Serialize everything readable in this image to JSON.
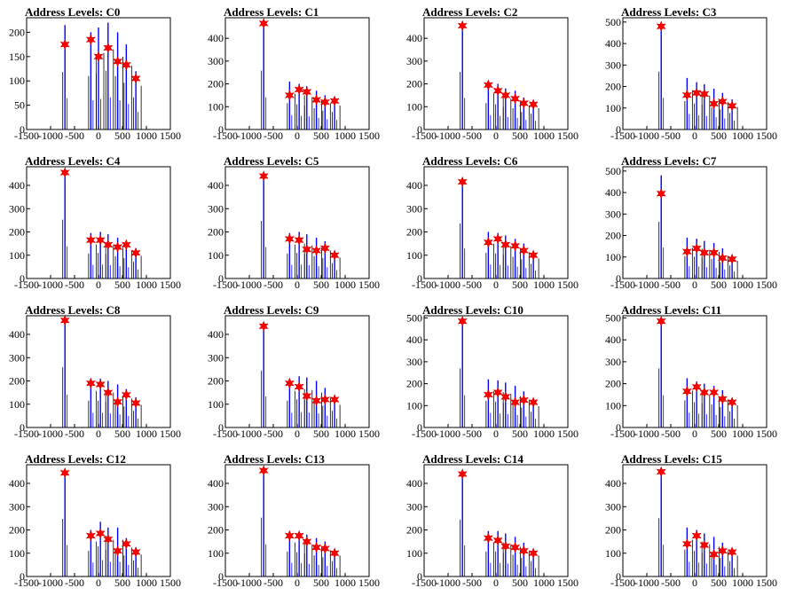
{
  "figure": {
    "xticks": [
      "-1500",
      "-1000",
      "-500",
      "0",
      "500",
      "1000",
      "1500"
    ]
  },
  "colors": {
    "histogram_line": "#0000ff",
    "secondary_line": "#000000",
    "peak_marker": "#ff0000",
    "marker_outline": "#cc0000",
    "axis": "#000000"
  },
  "chart_data": [
    {
      "type": "bar",
      "title": "Address Levels: C0",
      "xlim": [
        -1500,
        1500
      ],
      "ylim": [
        0,
        230
      ],
      "yticks": [
        "0",
        "50",
        "100",
        "150",
        "200"
      ],
      "peaks": [
        {
          "x": -700,
          "y": 175
        },
        {
          "x": -160,
          "y": 185
        },
        {
          "x": 0,
          "y": 150
        },
        {
          "x": 200,
          "y": 168
        },
        {
          "x": 400,
          "y": 140
        },
        {
          "x": 580,
          "y": 133
        },
        {
          "x": 780,
          "y": 105
        }
      ],
      "spikes": [
        {
          "x": -700,
          "y": 215
        },
        {
          "x": -160,
          "y": 200
        },
        {
          "x": 0,
          "y": 210
        },
        {
          "x": 200,
          "y": 220
        },
        {
          "x": 400,
          "y": 200
        },
        {
          "x": 580,
          "y": 175
        },
        {
          "x": 780,
          "y": 120
        }
      ]
    },
    {
      "type": "bar",
      "title": "Address Levels: C1",
      "xlim": [
        -1500,
        1500
      ],
      "ylim": [
        0,
        490
      ],
      "yticks": [
        "0",
        "100",
        "200",
        "300",
        "400"
      ],
      "peaks": [
        {
          "x": -700,
          "y": 465
        },
        {
          "x": -160,
          "y": 150
        },
        {
          "x": 40,
          "y": 175
        },
        {
          "x": 200,
          "y": 165
        },
        {
          "x": 400,
          "y": 130
        },
        {
          "x": 580,
          "y": 120
        },
        {
          "x": 780,
          "y": 125
        }
      ],
      "spikes": [
        {
          "x": -700,
          "y": 470
        },
        {
          "x": -160,
          "y": 210
        },
        {
          "x": 40,
          "y": 200
        },
        {
          "x": 200,
          "y": 190
        },
        {
          "x": 400,
          "y": 170
        },
        {
          "x": 580,
          "y": 150
        },
        {
          "x": 780,
          "y": 140
        }
      ]
    },
    {
      "type": "bar",
      "title": "Address Levels: C2",
      "xlim": [
        -1500,
        1500
      ],
      "ylim": [
        0,
        490
      ],
      "yticks": [
        "0",
        "100",
        "200",
        "300",
        "400"
      ],
      "peaks": [
        {
          "x": -700,
          "y": 455
        },
        {
          "x": -160,
          "y": 195
        },
        {
          "x": 40,
          "y": 170
        },
        {
          "x": 200,
          "y": 150
        },
        {
          "x": 400,
          "y": 135
        },
        {
          "x": 580,
          "y": 115
        },
        {
          "x": 780,
          "y": 110
        }
      ],
      "spikes": [
        {
          "x": -700,
          "y": 460
        },
        {
          "x": -160,
          "y": 210
        },
        {
          "x": 40,
          "y": 200
        },
        {
          "x": 200,
          "y": 180
        },
        {
          "x": 400,
          "y": 170
        },
        {
          "x": 580,
          "y": 140
        },
        {
          "x": 780,
          "y": 125
        }
      ]
    },
    {
      "type": "bar",
      "title": "Address Levels: C3",
      "xlim": [
        -1500,
        1500
      ],
      "ylim": [
        0,
        520
      ],
      "yticks": [
        "0",
        "100",
        "200",
        "300",
        "400",
        "500"
      ],
      "peaks": [
        {
          "x": -700,
          "y": 480
        },
        {
          "x": -160,
          "y": 160
        },
        {
          "x": 40,
          "y": 170
        },
        {
          "x": 200,
          "y": 165
        },
        {
          "x": 400,
          "y": 120
        },
        {
          "x": 580,
          "y": 130
        },
        {
          "x": 780,
          "y": 110
        }
      ],
      "spikes": [
        {
          "x": -700,
          "y": 490
        },
        {
          "x": -160,
          "y": 240
        },
        {
          "x": 40,
          "y": 220
        },
        {
          "x": 200,
          "y": 210
        },
        {
          "x": 400,
          "y": 190
        },
        {
          "x": 580,
          "y": 170
        },
        {
          "x": 780,
          "y": 140
        }
      ]
    },
    {
      "type": "bar",
      "title": "Address Levels: C4",
      "xlim": [
        -1500,
        1500
      ],
      "ylim": [
        0,
        480
      ],
      "yticks": [
        "0",
        "100",
        "200",
        "300",
        "400"
      ],
      "peaks": [
        {
          "x": -700,
          "y": 455
        },
        {
          "x": -160,
          "y": 165
        },
        {
          "x": 40,
          "y": 165
        },
        {
          "x": 200,
          "y": 145
        },
        {
          "x": 400,
          "y": 135
        },
        {
          "x": 580,
          "y": 145
        },
        {
          "x": 780,
          "y": 110
        }
      ],
      "spikes": [
        {
          "x": -700,
          "y": 460
        },
        {
          "x": -160,
          "y": 195
        },
        {
          "x": 40,
          "y": 200
        },
        {
          "x": 200,
          "y": 190
        },
        {
          "x": 400,
          "y": 175
        },
        {
          "x": 580,
          "y": 160
        },
        {
          "x": 780,
          "y": 130
        }
      ]
    },
    {
      "type": "bar",
      "title": "Address Levels: C5",
      "xlim": [
        -1500,
        1500
      ],
      "ylim": [
        0,
        480
      ],
      "yticks": [
        "0",
        "100",
        "200",
        "300",
        "400"
      ],
      "peaks": [
        {
          "x": -700,
          "y": 440
        },
        {
          "x": -160,
          "y": 170
        },
        {
          "x": 40,
          "y": 165
        },
        {
          "x": 200,
          "y": 125
        },
        {
          "x": 400,
          "y": 120
        },
        {
          "x": 580,
          "y": 130
        },
        {
          "x": 780,
          "y": 100
        }
      ],
      "spikes": [
        {
          "x": -700,
          "y": 450
        },
        {
          "x": -160,
          "y": 195
        },
        {
          "x": 40,
          "y": 200
        },
        {
          "x": 200,
          "y": 190
        },
        {
          "x": 400,
          "y": 175
        },
        {
          "x": 580,
          "y": 160
        },
        {
          "x": 780,
          "y": 120
        }
      ]
    },
    {
      "type": "bar",
      "title": "Address Levels: C6",
      "xlim": [
        -1500,
        1500
      ],
      "ylim": [
        0,
        480
      ],
      "yticks": [
        "0",
        "100",
        "200",
        "300",
        "400"
      ],
      "peaks": [
        {
          "x": -700,
          "y": 415
        },
        {
          "x": -160,
          "y": 155
        },
        {
          "x": 40,
          "y": 170
        },
        {
          "x": 200,
          "y": 145
        },
        {
          "x": 400,
          "y": 140
        },
        {
          "x": 580,
          "y": 120
        },
        {
          "x": 780,
          "y": 100
        }
      ],
      "spikes": [
        {
          "x": -700,
          "y": 430
        },
        {
          "x": -160,
          "y": 200
        },
        {
          "x": 40,
          "y": 195
        },
        {
          "x": 200,
          "y": 185
        },
        {
          "x": 400,
          "y": 170
        },
        {
          "x": 580,
          "y": 150
        },
        {
          "x": 780,
          "y": 115
        }
      ]
    },
    {
      "type": "bar",
      "title": "Address Levels: C7",
      "xlim": [
        -1500,
        1500
      ],
      "ylim": [
        0,
        520
      ],
      "yticks": [
        "0",
        "100",
        "200",
        "300",
        "400",
        "500"
      ],
      "peaks": [
        {
          "x": -700,
          "y": 395
        },
        {
          "x": -160,
          "y": 125
        },
        {
          "x": 40,
          "y": 140
        },
        {
          "x": 200,
          "y": 120
        },
        {
          "x": 400,
          "y": 120
        },
        {
          "x": 580,
          "y": 95
        },
        {
          "x": 780,
          "y": 90
        }
      ],
      "spikes": [
        {
          "x": -700,
          "y": 480
        },
        {
          "x": -160,
          "y": 190
        },
        {
          "x": 40,
          "y": 185
        },
        {
          "x": 200,
          "y": 175
        },
        {
          "x": 400,
          "y": 165
        },
        {
          "x": 580,
          "y": 140
        },
        {
          "x": 780,
          "y": 110
        }
      ]
    },
    {
      "type": "bar",
      "title": "Address Levels: C8",
      "xlim": [
        -1500,
        1500
      ],
      "ylim": [
        0,
        480
      ],
      "yticks": [
        "0",
        "100",
        "200",
        "300",
        "400"
      ],
      "peaks": [
        {
          "x": -700,
          "y": 460
        },
        {
          "x": -160,
          "y": 190
        },
        {
          "x": 40,
          "y": 185
        },
        {
          "x": 200,
          "y": 150
        },
        {
          "x": 400,
          "y": 110
        },
        {
          "x": 580,
          "y": 140
        },
        {
          "x": 780,
          "y": 105
        }
      ],
      "spikes": [
        {
          "x": -700,
          "y": 470
        },
        {
          "x": -160,
          "y": 210
        },
        {
          "x": 40,
          "y": 210
        },
        {
          "x": 200,
          "y": 200
        },
        {
          "x": 400,
          "y": 185
        },
        {
          "x": 580,
          "y": 165
        },
        {
          "x": 780,
          "y": 130
        }
      ]
    },
    {
      "type": "bar",
      "title": "Address Levels: C9",
      "xlim": [
        -1500,
        1500
      ],
      "ylim": [
        0,
        480
      ],
      "yticks": [
        "0",
        "100",
        "200",
        "300",
        "400"
      ],
      "peaks": [
        {
          "x": -700,
          "y": 435
        },
        {
          "x": -160,
          "y": 190
        },
        {
          "x": 40,
          "y": 175
        },
        {
          "x": 200,
          "y": 135
        },
        {
          "x": 400,
          "y": 115
        },
        {
          "x": 580,
          "y": 120
        },
        {
          "x": 780,
          "y": 120
        }
      ],
      "spikes": [
        {
          "x": -700,
          "y": 445
        },
        {
          "x": -160,
          "y": 210
        },
        {
          "x": 40,
          "y": 220
        },
        {
          "x": 200,
          "y": 215
        },
        {
          "x": 400,
          "y": 200
        },
        {
          "x": 580,
          "y": 170
        },
        {
          "x": 780,
          "y": 130
        }
      ]
    },
    {
      "type": "bar",
      "title": "Address Levels: C10",
      "xlim": [
        -1500,
        1500
      ],
      "ylim": [
        0,
        510
      ],
      "yticks": [
        "0",
        "100",
        "200",
        "300",
        "400",
        "500"
      ],
      "peaks": [
        {
          "x": -700,
          "y": 485
        },
        {
          "x": -160,
          "y": 150
        },
        {
          "x": 40,
          "y": 160
        },
        {
          "x": 200,
          "y": 140
        },
        {
          "x": 400,
          "y": 115
        },
        {
          "x": 580,
          "y": 125
        },
        {
          "x": 780,
          "y": 115
        }
      ],
      "spikes": [
        {
          "x": -700,
          "y": 490
        },
        {
          "x": -160,
          "y": 220
        },
        {
          "x": 40,
          "y": 215
        },
        {
          "x": 200,
          "y": 205
        },
        {
          "x": 400,
          "y": 190
        },
        {
          "x": 580,
          "y": 165
        },
        {
          "x": 780,
          "y": 130
        }
      ]
    },
    {
      "type": "bar",
      "title": "Address Levels: C11",
      "xlim": [
        -1500,
        1500
      ],
      "ylim": [
        0,
        510
      ],
      "yticks": [
        "0",
        "100",
        "200",
        "300",
        "400",
        "500"
      ],
      "peaks": [
        {
          "x": -700,
          "y": 485
        },
        {
          "x": -160,
          "y": 165
        },
        {
          "x": 40,
          "y": 185
        },
        {
          "x": 200,
          "y": 160
        },
        {
          "x": 400,
          "y": 160
        },
        {
          "x": 580,
          "y": 130
        },
        {
          "x": 780,
          "y": 115
        }
      ],
      "spikes": [
        {
          "x": -700,
          "y": 490
        },
        {
          "x": -160,
          "y": 225
        },
        {
          "x": 40,
          "y": 210
        },
        {
          "x": 200,
          "y": 200
        },
        {
          "x": 400,
          "y": 190
        },
        {
          "x": 580,
          "y": 170
        },
        {
          "x": 780,
          "y": 135
        }
      ]
    },
    {
      "type": "bar",
      "title": "Address Levels: C12",
      "xlim": [
        -1500,
        1500
      ],
      "ylim": [
        0,
        480
      ],
      "yticks": [
        "0",
        "100",
        "200",
        "300",
        "400"
      ],
      "peaks": [
        {
          "x": -700,
          "y": 445
        },
        {
          "x": -160,
          "y": 175
        },
        {
          "x": 40,
          "y": 185
        },
        {
          "x": 200,
          "y": 160
        },
        {
          "x": 400,
          "y": 110
        },
        {
          "x": 580,
          "y": 140
        },
        {
          "x": 780,
          "y": 105
        }
      ],
      "spikes": [
        {
          "x": -700,
          "y": 450
        },
        {
          "x": -160,
          "y": 200
        },
        {
          "x": 40,
          "y": 235
        },
        {
          "x": 200,
          "y": 210
        },
        {
          "x": 400,
          "y": 210
        },
        {
          "x": 580,
          "y": 165
        },
        {
          "x": 780,
          "y": 125
        }
      ]
    },
    {
      "type": "bar",
      "title": "Address Levels: C13",
      "xlim": [
        -1500,
        1500
      ],
      "ylim": [
        0,
        480
      ],
      "yticks": [
        "0",
        "100",
        "200",
        "300",
        "400"
      ],
      "peaks": [
        {
          "x": -700,
          "y": 455
        },
        {
          "x": -160,
          "y": 175
        },
        {
          "x": 40,
          "y": 175
        },
        {
          "x": 200,
          "y": 150
        },
        {
          "x": 400,
          "y": 125
        },
        {
          "x": 580,
          "y": 120
        },
        {
          "x": 780,
          "y": 100
        }
      ],
      "spikes": [
        {
          "x": -700,
          "y": 460
        },
        {
          "x": -160,
          "y": 195
        },
        {
          "x": 40,
          "y": 190
        },
        {
          "x": 200,
          "y": 180
        },
        {
          "x": 400,
          "y": 165
        },
        {
          "x": 580,
          "y": 150
        },
        {
          "x": 780,
          "y": 120
        }
      ]
    },
    {
      "type": "bar",
      "title": "Address Levels: C14",
      "xlim": [
        -1500,
        1500
      ],
      "ylim": [
        0,
        480
      ],
      "yticks": [
        "0",
        "100",
        "200",
        "300",
        "400"
      ],
      "peaks": [
        {
          "x": -700,
          "y": 440
        },
        {
          "x": -160,
          "y": 165
        },
        {
          "x": 40,
          "y": 155
        },
        {
          "x": 200,
          "y": 130
        },
        {
          "x": 400,
          "y": 125
        },
        {
          "x": 580,
          "y": 110
        },
        {
          "x": 780,
          "y": 100
        }
      ],
      "spikes": [
        {
          "x": -700,
          "y": 445
        },
        {
          "x": -160,
          "y": 195
        },
        {
          "x": 40,
          "y": 195
        },
        {
          "x": 200,
          "y": 185
        },
        {
          "x": 400,
          "y": 170
        },
        {
          "x": 580,
          "y": 145
        },
        {
          "x": 780,
          "y": 120
        }
      ]
    },
    {
      "type": "bar",
      "title": "Address Levels: C15",
      "xlim": [
        -1500,
        1500
      ],
      "ylim": [
        0,
        480
      ],
      "yticks": [
        "0",
        "100",
        "200",
        "300",
        "400"
      ],
      "peaks": [
        {
          "x": -700,
          "y": 450
        },
        {
          "x": -160,
          "y": 140
        },
        {
          "x": 40,
          "y": 175
        },
        {
          "x": 200,
          "y": 135
        },
        {
          "x": 400,
          "y": 95
        },
        {
          "x": 580,
          "y": 110
        },
        {
          "x": 780,
          "y": 105
        }
      ],
      "spikes": [
        {
          "x": -700,
          "y": 455
        },
        {
          "x": -160,
          "y": 210
        },
        {
          "x": 40,
          "y": 200
        },
        {
          "x": 200,
          "y": 185
        },
        {
          "x": 400,
          "y": 170
        },
        {
          "x": 580,
          "y": 145
        },
        {
          "x": 780,
          "y": 120
        }
      ]
    }
  ]
}
